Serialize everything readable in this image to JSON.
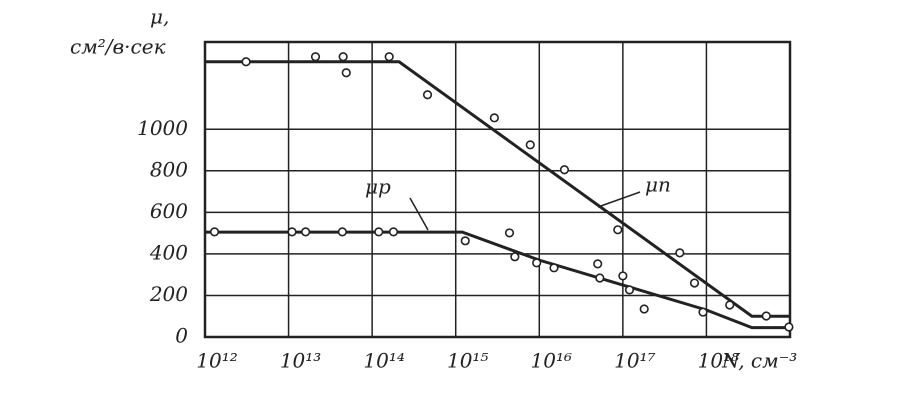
{
  "chart_data": {
    "type": "line",
    "y_label": "μ,",
    "y_unit": "см²/в·сек",
    "x_label": "N, см⁻³",
    "xlim": [
      1000000000000.0,
      1e+19
    ],
    "log_x": true,
    "xticks": [
      {
        "value": 1000000000000.0,
        "label": "10¹²"
      },
      {
        "value": 10000000000000.0,
        "label": "10¹³"
      },
      {
        "value": 100000000000000.0,
        "label": "10¹⁴"
      },
      {
        "value": 1000000000000000.0,
        "label": "10¹⁵"
      },
      {
        "value": 1e+16,
        "label": "10¹⁶"
      },
      {
        "value": 1e+17,
        "label": "10¹⁷"
      },
      {
        "value": 1e+18,
        "label": "10¹⁸"
      }
    ],
    "ylim": [
      0,
      1420
    ],
    "yticks": [
      0,
      200,
      400,
      600,
      800,
      1000
    ],
    "grid": true,
    "color": "#222",
    "series": [
      {
        "name": "μп",
        "x": [
          1000000000000.0,
          210000000000000.0,
          3.5e+18,
          1e+19
        ],
        "values": [
          1325,
          1325,
          100,
          100
        ]
      },
      {
        "name": "μp",
        "x": [
          1000000000000.0,
          1200000000000000.0,
          1e+16,
          1e+17,
          1e+18,
          3.5e+18,
          1e+19
        ],
        "values": [
          505,
          505,
          370,
          250,
          130,
          45,
          45
        ]
      }
    ],
    "points": [
      {
        "x": [
          3100000000000.0,
          21000000000000.0,
          45000000000000.0,
          49000000000000.0,
          160000000000000.0,
          460000000000000.0,
          2900000000000000.0,
          7800000000000000.0,
          2e+16,
          8.7e+16,
          4.8e+17,
          7.2e+17,
          1.9e+18,
          5.2e+18,
          9.7e+18
        ],
        "values": [
          1325,
          1349,
          1349,
          1272,
          1349,
          1166,
          1055,
          925,
          805,
          516,
          405,
          260,
          154,
          101,
          48
        ]
      },
      {
        "x": [
          1300000000000.0,
          11000000000000.0,
          16000000000000.0,
          44000000000000.0,
          120000000000000.0,
          180000000000000.0,
          1300000000000000.0,
          4400000000000000.0,
          5100000000000000.0,
          9300000000000000.0,
          1.5e+16,
          5e+16,
          5.3e+16,
          1e+17,
          1.2e+17,
          1.8e+17,
          9.1e+17
        ],
        "values": [
          506,
          506,
          506,
          506,
          506,
          506,
          463,
          501,
          386,
          357,
          333,
          352,
          284,
          294,
          227,
          135,
          120
        ]
      }
    ]
  }
}
